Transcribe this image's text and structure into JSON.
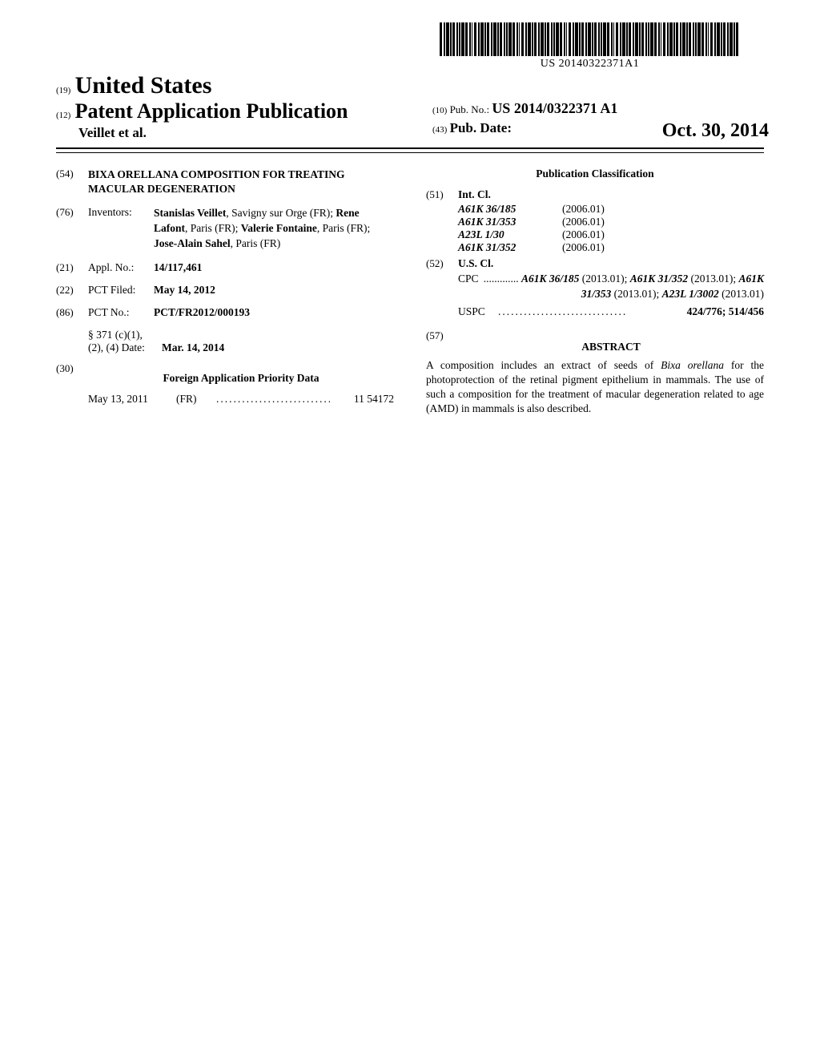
{
  "barcode_text": "US 20140322371A1",
  "header": {
    "country_code": "(19)",
    "country": "United States",
    "pub_code": "(12)",
    "pub_type": "Patent Application Publication",
    "inventors_short": "Veillet et al.",
    "pubno_code": "(10)",
    "pubno_label": "Pub. No.:",
    "pubno_value": "US 2014/0322371 A1",
    "pubdate_code": "(43)",
    "pubdate_label": "Pub. Date:",
    "pubdate_value": "Oct. 30, 2014"
  },
  "left": {
    "title_code": "(54)",
    "title": "BIXA ORELLANA COMPOSITION FOR TREATING MACULAR DEGENERATION",
    "inventors_code": "(76)",
    "inventors_label": "Inventors:",
    "inventors_value_parts": [
      {
        "name": "Stanislas Veillet",
        "loc": ", Savigny sur Orge (FR); "
      },
      {
        "name": "Rene Lafont",
        "loc": ", Paris (FR); "
      },
      {
        "name": "Valerie Fontaine",
        "loc": ", Paris (FR); "
      },
      {
        "name": "Jose-Alain Sahel",
        "loc": ", Paris (FR)"
      }
    ],
    "applno_code": "(21)",
    "applno_label": "Appl. No.:",
    "applno_value": "14/117,461",
    "pctfiled_code": "(22)",
    "pctfiled_label": "PCT Filed:",
    "pctfiled_value": "May 14, 2012",
    "pctno_code": "(86)",
    "pctno_label": "PCT No.:",
    "pctno_value": "PCT/FR2012/000193",
    "section371_label": "§ 371 (c)(1),\n(2), (4) Date:",
    "section371_value": "Mar. 14, 2014",
    "foreign_code": "(30)",
    "foreign_title": "Foreign Application Priority Data",
    "foreign_date": "May 13, 2011",
    "foreign_country": "(FR)",
    "foreign_number": "11 54172"
  },
  "right": {
    "classif_title": "Publication Classification",
    "intcl_code": "(51)",
    "intcl_label": "Int. Cl.",
    "intcl": [
      {
        "code": "A61K 36/185",
        "ver": "(2006.01)"
      },
      {
        "code": "A61K 31/353",
        "ver": "(2006.01)"
      },
      {
        "code": "A23L 1/30",
        "ver": "(2006.01)"
      },
      {
        "code": "A61K 31/352",
        "ver": "(2006.01)"
      }
    ],
    "uscl_code": "(52)",
    "uscl_label": "U.S. Cl.",
    "cpc_lead": "CPC",
    "cpc_text_parts": [
      {
        "t": " ............. "
      },
      {
        "t": "A61K 36/185",
        "bi": true
      },
      {
        "t": " (2013.01); "
      },
      {
        "t": "A61K 31/352",
        "bi": true
      },
      {
        "t": " (2013.01); "
      },
      {
        "t": "A61K 31/353",
        "bi": true
      },
      {
        "t": " (2013.01); "
      },
      {
        "t": "A23L 1/3002",
        "bi": true
      },
      {
        "t": " (2013.01)"
      }
    ],
    "uspc_lead": "USPC",
    "uspc_value": "424/776; 514/456",
    "abstract_code": "(57)",
    "abstract_title": "ABSTRACT",
    "abstract_parts": [
      {
        "t": "A composition includes an extract of seeds of "
      },
      {
        "t": "Bixa orellana",
        "i": true
      },
      {
        "t": " for the photoprotection of the retinal pigment epithelium in mammals. The use of such a composition for the treatment of macular degeneration related to age (AMD) in mammals is also described."
      }
    ]
  }
}
